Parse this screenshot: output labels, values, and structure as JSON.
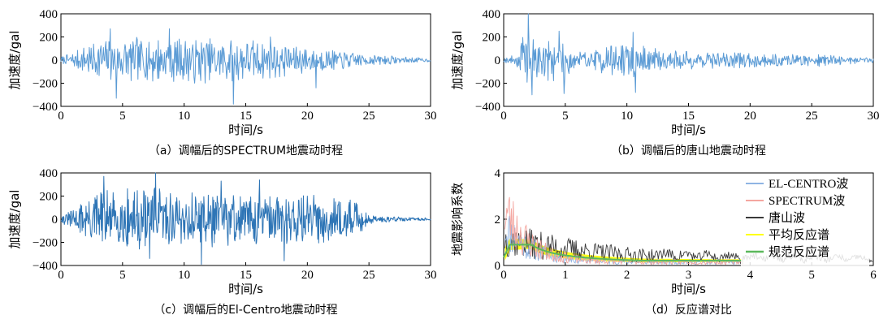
{
  "chart_data": [
    {
      "id": "a",
      "type": "line",
      "caption": "（a）调幅后的SPECTRUM地震动时程",
      "xlabel": "时间/s",
      "ylabel": "加速度/gal",
      "xlim": [
        0,
        30
      ],
      "ylim": [
        -400,
        400
      ],
      "xticks": [
        0,
        5,
        10,
        15,
        20,
        25,
        30
      ],
      "yticks": [
        400,
        200,
        0,
        -200,
        -400
      ],
      "grid": false,
      "color": "#5b9bd5",
      "envelope": [
        [
          0,
          30
        ],
        [
          1,
          70
        ],
        [
          3,
          190
        ],
        [
          5,
          200
        ],
        [
          9,
          210
        ],
        [
          13,
          200
        ],
        [
          17,
          170
        ],
        [
          20,
          120
        ],
        [
          25,
          55
        ],
        [
          28,
          30
        ],
        [
          30,
          15
        ]
      ],
      "peaks": [
        [
          4.0,
          270
        ],
        [
          4.5,
          -330
        ],
        [
          8.8,
          270
        ],
        [
          14.0,
          -380
        ],
        [
          17.0,
          200
        ],
        [
          20.7,
          -240
        ]
      ],
      "series": [
        {
          "name": "",
          "x_range": [
            0,
            30
          ],
          "sample_step": 0.05
        }
      ]
    },
    {
      "id": "b",
      "type": "line",
      "caption": "（b）调幅后的唐山地震动时程",
      "xlabel": "时间/s",
      "ylabel": "加速度/gal",
      "xlim": [
        0,
        30
      ],
      "ylim": [
        -400,
        400
      ],
      "xticks": [
        0,
        5,
        10,
        15,
        20,
        25,
        30
      ],
      "yticks": [
        400,
        200,
        0,
        -200,
        -400
      ],
      "grid": false,
      "color": "#5b9bd5",
      "envelope": [
        [
          0,
          20
        ],
        [
          1,
          50
        ],
        [
          1.5,
          220
        ],
        [
          3,
          190
        ],
        [
          5,
          170
        ],
        [
          7,
          60
        ],
        [
          8.5,
          160
        ],
        [
          10.5,
          150
        ],
        [
          13,
          90
        ],
        [
          16,
          80
        ],
        [
          20,
          65
        ],
        [
          25,
          60
        ],
        [
          28,
          40
        ],
        [
          30,
          20
        ]
      ],
      "peaks": [
        [
          2.0,
          400
        ],
        [
          2.3,
          -300
        ],
        [
          4.5,
          250
        ],
        [
          4.9,
          -290
        ],
        [
          10.5,
          240
        ],
        [
          10.7,
          -280
        ]
      ],
      "series": [
        {
          "name": "",
          "x_range": [
            0,
            30
          ],
          "sample_step": 0.05
        }
      ]
    },
    {
      "id": "c",
      "type": "line",
      "caption": "（c）调幅后的El-Centro地震动时程",
      "xlabel": "时间/s",
      "ylabel": "加速度/gal",
      "xlim": [
        0,
        30
      ],
      "ylim": [
        -400,
        400
      ],
      "xticks": [
        0,
        5,
        10,
        15,
        20,
        25,
        30
      ],
      "yticks": [
        400,
        200,
        0,
        -200,
        -400
      ],
      "grid": false,
      "color": "#2e75b6",
      "envelope": [
        [
          0,
          30
        ],
        [
          1,
          100
        ],
        [
          3,
          260
        ],
        [
          6,
          280
        ],
        [
          10,
          260
        ],
        [
          15,
          240
        ],
        [
          20,
          230
        ],
        [
          24,
          160
        ],
        [
          25,
          40
        ],
        [
          28,
          20
        ],
        [
          30,
          10
        ]
      ],
      "peaks": [
        [
          3.5,
          370
        ],
        [
          7.7,
          410
        ],
        [
          7.2,
          -340
        ],
        [
          11.4,
          -390
        ],
        [
          13,
          330
        ],
        [
          16.1,
          340
        ],
        [
          18.1,
          -360
        ]
      ],
      "series": [
        {
          "name": "",
          "x_range": [
            0,
            30
          ],
          "sample_step": 0.04
        }
      ]
    },
    {
      "id": "d",
      "type": "line",
      "caption": "（d）反应谱对比",
      "xlabel": "时间/s",
      "ylabel": "地震影响系数",
      "xlim": [
        0,
        6
      ],
      "ylim": [
        0,
        4
      ],
      "xticks": [
        0,
        1,
        2,
        3,
        4,
        5,
        6
      ],
      "yticks": [
        4,
        2,
        0
      ],
      "grid": false,
      "legend_position": "top-right",
      "series": [
        {
          "name": "EL-CENTRO波",
          "color": "#8fb4e3"
        },
        {
          "name": "SPECTRUM波",
          "color": "#f4a6a0"
        },
        {
          "name": "唐山波",
          "color": "#3a3a3a"
        },
        {
          "name": "平均反应谱",
          "color": "#ffff00"
        },
        {
          "name": "规范反应谱",
          "color": "#5cb85c"
        }
      ],
      "code_spectrum": {
        "peak": 0.9,
        "Tg": 0.45,
        "tail_value": 0.35
      }
    }
  ]
}
